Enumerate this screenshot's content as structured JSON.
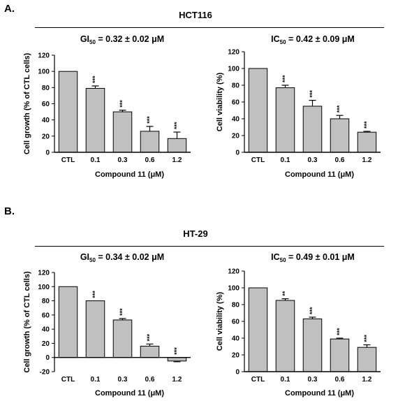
{
  "panels": [
    {
      "label": "A.",
      "cell_line": "HCT116"
    },
    {
      "label": "B.",
      "cell_line": "HT-29"
    }
  ],
  "colors": {
    "bar_fill": "#c0c0c0",
    "axis": "#000000"
  },
  "chart_data": [
    {
      "type": "bar",
      "title_prefix": "GI",
      "title_sub": "50",
      "title_suffix": " = 0.32 ± 0.02 μM",
      "categories": [
        "CTL",
        "0.1",
        "0.3",
        "0.6",
        "1.2"
      ],
      "values": [
        100,
        79,
        50,
        26,
        17
      ],
      "errors": [
        0,
        3,
        2,
        6,
        8
      ],
      "significance": [
        "",
        "***",
        "***",
        "***",
        "***"
      ],
      "xlabel": "Compound 11 (μM)",
      "ylabel": "Cell growth (% of CTL cells)",
      "ylim": [
        0,
        120
      ],
      "yticks": [
        "0",
        "20",
        "40",
        "60",
        "80",
        "100",
        "120"
      ]
    },
    {
      "type": "bar",
      "title_prefix": "IC",
      "title_sub": "50",
      "title_suffix": " = 0.42 ± 0.09 μM",
      "categories": [
        "CTL",
        "0.1",
        "0.3",
        "0.6",
        "1.2"
      ],
      "values": [
        100,
        77,
        55,
        40,
        24
      ],
      "errors": [
        0,
        3,
        7,
        4,
        1
      ],
      "significance": [
        "",
        "***",
        "***",
        "***",
        "***"
      ],
      "xlabel": "Compound 11 (μM)",
      "ylabel": "Cell viability (%)",
      "ylim": [
        0,
        120
      ],
      "yticks": [
        "0",
        "20",
        "40",
        "60",
        "80",
        "100",
        "120"
      ]
    },
    {
      "type": "bar",
      "title_prefix": "GI",
      "title_sub": "50",
      "title_suffix": " = 0.34 ± 0.02 μM",
      "categories": [
        "CTL",
        "0.1",
        "0.3",
        "0.6",
        "1.2"
      ],
      "values": [
        100,
        80,
        53,
        16,
        -5
      ],
      "errors": [
        0,
        0,
        2,
        3,
        1
      ],
      "significance": [
        "",
        "***",
        "***",
        "***",
        "***"
      ],
      "xlabel": "Compound 11 (μM)",
      "ylabel": "Cell growth (% of CTL cells)",
      "ylim": [
        -20,
        120
      ],
      "yticks": [
        "-20",
        "0",
        "20",
        "40",
        "60",
        "80",
        "100",
        "120"
      ]
    },
    {
      "type": "bar",
      "title_prefix": "IC",
      "title_sub": "50",
      "title_suffix": " = 0.49 ± 0.01 μM",
      "categories": [
        "CTL",
        "0.1",
        "0.3",
        "0.6",
        "1.2"
      ],
      "values": [
        100,
        85,
        63,
        39,
        29
      ],
      "errors": [
        0,
        2,
        2,
        1,
        3
      ],
      "significance": [
        "",
        "**",
        "***",
        "***",
        "***"
      ],
      "xlabel": "Compound 11 (μM)",
      "ylabel": "Cell viability (%)",
      "ylim": [
        0,
        120
      ],
      "yticks": [
        "0",
        "20",
        "40",
        "60",
        "80",
        "100",
        "120"
      ]
    }
  ]
}
